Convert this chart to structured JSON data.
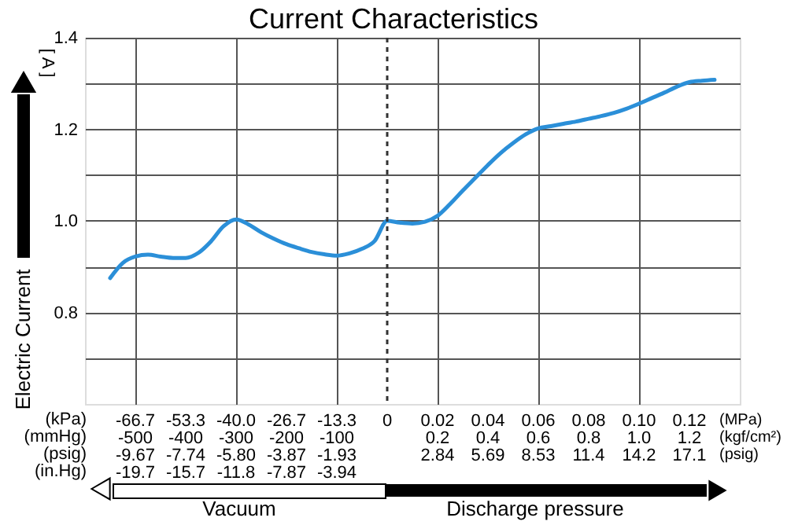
{
  "chart_data": {
    "type": "line",
    "title": "Current Characteristics",
    "ylabel": "Electric Current",
    "annotations": [
      "[ A ]",
      "(kPa)",
      "(mmHg)",
      "(psig)",
      "(in.Hg)",
      "(MPa)",
      "(kgf/cm²)",
      "(psig)",
      "Vacuum",
      "Discharge pressure"
    ],
    "categories": [
      null,
      null,
      null,
      null,
      "-66.7\n-500\n-9.67\n-19.7",
      null,
      null,
      null,
      "-53.3\n-400\n-7.74\n-15.7",
      null,
      null,
      null,
      "-40.0\n-300\n-5.80\n-11.8",
      null,
      null,
      null,
      "-26.7\n-200\n-3.87\n-7.87",
      null,
      null,
      null,
      "-13.3\n-100\n-1.93\n-3.94",
      null,
      null,
      null,
      "0",
      null,
      null,
      null,
      "0.02\n0.2\n2.84",
      null,
      null,
      null,
      "0.04\n0.4\n5.69",
      null,
      null,
      null,
      "0.06\n0.6\n8.53",
      null,
      null,
      null,
      "0.08\n0.8\n11.4",
      null,
      null,
      null,
      "0.10\n1.0\n14.2",
      null,
      null,
      null,
      "0.12\n1.2\n17.1",
      null,
      null,
      null,
      null
    ],
    "values": [
      null,
      null,
      0.875,
      0.908,
      0.922,
      0.926,
      0.922,
      0.919,
      0.919,
      0.93,
      0.955,
      0.988,
      1.003,
      0.992,
      0.975,
      0.961,
      0.949,
      0.94,
      0.932,
      0.927,
      0.924,
      0.929,
      0.939,
      0.956,
      1.0,
      0.996,
      0.994,
      0.998,
      1.011,
      1.037,
      1.066,
      1.094,
      1.122,
      1.148,
      1.17,
      1.189,
      1.202,
      1.207,
      1.212,
      1.217,
      1.223,
      1.229,
      1.236,
      1.245,
      1.256,
      1.268,
      1.28,
      1.293,
      1.303,
      1.306,
      1.308,
      null,
      null
    ],
    "color": "#2b8fd8",
    "ylim": [
      0.6,
      1.4
    ],
    "yticks": [
      {
        "value": 0.7,
        "label": null
      },
      0.8,
      {
        "value": 0.9,
        "label": null
      },
      {
        "value": 1.0,
        "label": "1.0"
      },
      {
        "value": 1.1,
        "label": null
      },
      1.2,
      {
        "value": 1.3,
        "label": null
      },
      1.4
    ],
    "grid": true,
    "ref_lines": [
      {
        "axis": "x",
        "value": "0",
        "line_style": "dashed",
        "color": "#333333"
      }
    ]
  }
}
